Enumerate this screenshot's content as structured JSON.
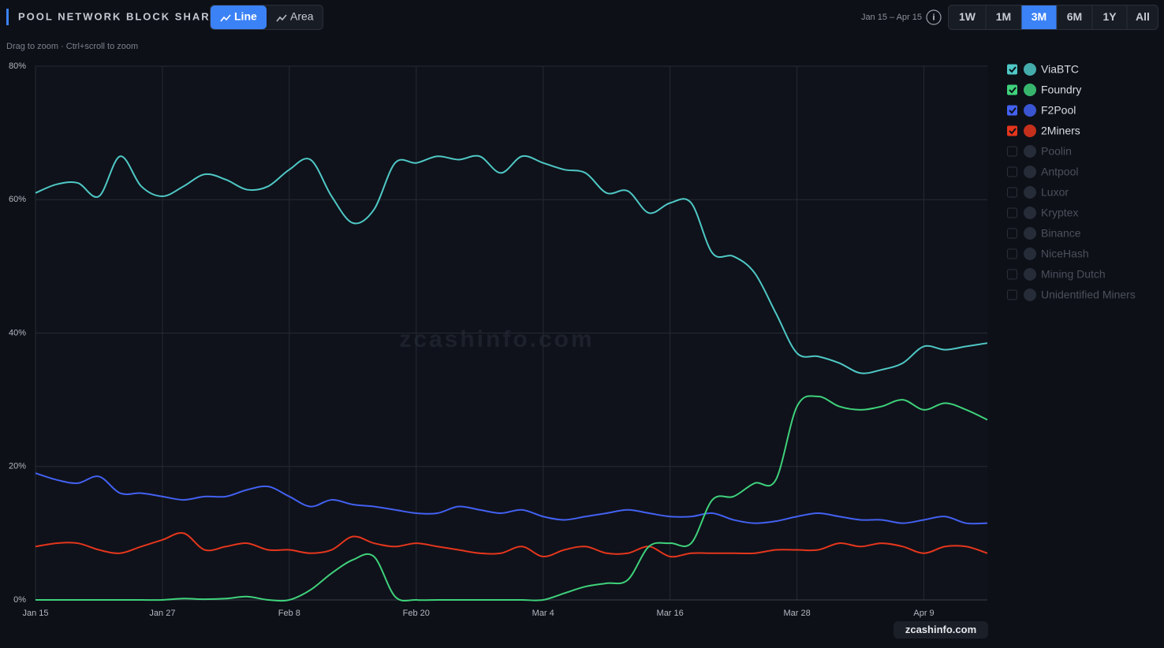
{
  "controls": {
    "title": "POOL NETWORK BLOCK SHARE",
    "view_modes": [
      "Line",
      "Area"
    ],
    "active_view": "Line",
    "date_range": "Jan 15 – Apr 15",
    "info": "i",
    "ranges": [
      "1W",
      "1M",
      "3M",
      "6M",
      "1Y",
      "All"
    ],
    "active_range": "3M",
    "hint": "Drag to zoom · Ctrl+scroll to zoom",
    "watermark": "zcashinfo.com",
    "badge": "zcashinfo.com"
  },
  "chart_data": {
    "type": "line",
    "x": [
      "Jan 15",
      "Jan 17",
      "Jan 19",
      "Jan 21",
      "Jan 23",
      "Jan 25",
      "Jan 27",
      "Jan 29",
      "Jan 31",
      "Feb 2",
      "Feb 4",
      "Feb 6",
      "Feb 8",
      "Feb 10",
      "Feb 12",
      "Feb 14",
      "Feb 16",
      "Feb 18",
      "Feb 20",
      "Feb 22",
      "Feb 24",
      "Feb 26",
      "Feb 28",
      "Mar 2",
      "Mar 4",
      "Mar 6",
      "Mar 8",
      "Mar 10",
      "Mar 12",
      "Mar 14",
      "Mar 16",
      "Mar 18",
      "Mar 20",
      "Mar 22",
      "Mar 24",
      "Mar 26",
      "Mar 28",
      "Mar 30",
      "Apr 1",
      "Apr 3",
      "Apr 5",
      "Apr 7",
      "Apr 9",
      "Apr 11",
      "Apr 13",
      "Apr 15"
    ],
    "xticks": [
      "Jan 15",
      "Jan 27",
      "Feb 8",
      "Feb 20",
      "Mar 4",
      "Mar 16",
      "Mar 28",
      "Apr 9"
    ],
    "ylim": [
      0,
      80
    ],
    "yticks": [
      {
        "value": 0,
        "label": "0%"
      },
      {
        "value": 20,
        "label": "20%"
      },
      {
        "value": 40,
        "label": "40%"
      },
      {
        "value": 60,
        "label": "60%"
      },
      {
        "value": 80,
        "label": "80%"
      }
    ],
    "grid": true,
    "series": [
      {
        "name": "ViaBTC",
        "color": "#4fc8c6",
        "values": [
          61,
          62.3,
          62.5,
          60.5,
          66.5,
          62,
          60.5,
          62,
          63.8,
          63,
          61.5,
          62,
          64.5,
          66,
          60.5,
          56.5,
          58.5,
          65.5,
          65.5,
          66.5,
          66,
          66.5,
          64,
          66.5,
          65.5,
          64.5,
          64,
          61,
          61.3,
          58,
          59.5,
          59.5,
          52,
          51.5,
          49,
          43,
          37,
          36.5,
          35.5,
          34,
          34.5,
          35.5,
          38,
          37.5,
          38,
          38.5
        ]
      },
      {
        "name": "Foundry",
        "color": "#3fd27c",
        "values": [
          0,
          0,
          0,
          0,
          0,
          0,
          0,
          0.2,
          0.1,
          0.2,
          0.5,
          0,
          0,
          1.5,
          4,
          6,
          6.5,
          0.5,
          0,
          0,
          0,
          0,
          0,
          0,
          0,
          1,
          2,
          2.5,
          3,
          8,
          8.5,
          8.5,
          15,
          15.5,
          17.5,
          18,
          29,
          30.5,
          29,
          28.5,
          29,
          30,
          28.5,
          29.5,
          28.5,
          27
        ]
      },
      {
        "name": "F2Pool",
        "color": "#4361f2",
        "values": [
          19,
          18,
          17.5,
          18.5,
          16,
          16,
          15.5,
          15,
          15.5,
          15.5,
          16.5,
          17,
          15.5,
          14,
          15,
          14.3,
          14,
          13.5,
          13,
          13,
          14,
          13.5,
          13,
          13.5,
          12.5,
          12,
          12.5,
          13,
          13.5,
          13,
          12.5,
          12.5,
          13,
          12,
          11.5,
          11.8,
          12.5,
          13,
          12.5,
          12,
          12,
          11.5,
          12,
          12.5,
          11.5,
          11.5
        ]
      },
      {
        "name": "2Miners",
        "color": "#e5361d",
        "values": [
          8,
          8.5,
          8.5,
          7.5,
          7,
          8,
          9,
          10,
          7.5,
          8,
          8.5,
          7.5,
          7.5,
          7,
          7.5,
          9.5,
          8.5,
          8,
          8.5,
          8,
          7.5,
          7,
          7,
          8,
          6.5,
          7.5,
          8,
          7,
          7,
          8,
          6.5,
          7,
          7,
          7,
          7,
          7.5,
          7.5,
          7.5,
          8.5,
          8,
          8.5,
          8,
          7,
          8,
          8,
          7
        ]
      }
    ],
    "legend_inactive": [
      "Poolin",
      "Antpool",
      "Luxor",
      "Kryptex",
      "Binance",
      "NiceHash",
      "Mining Dutch",
      "Unidentified Miners"
    ],
    "legend_position": "right"
  }
}
